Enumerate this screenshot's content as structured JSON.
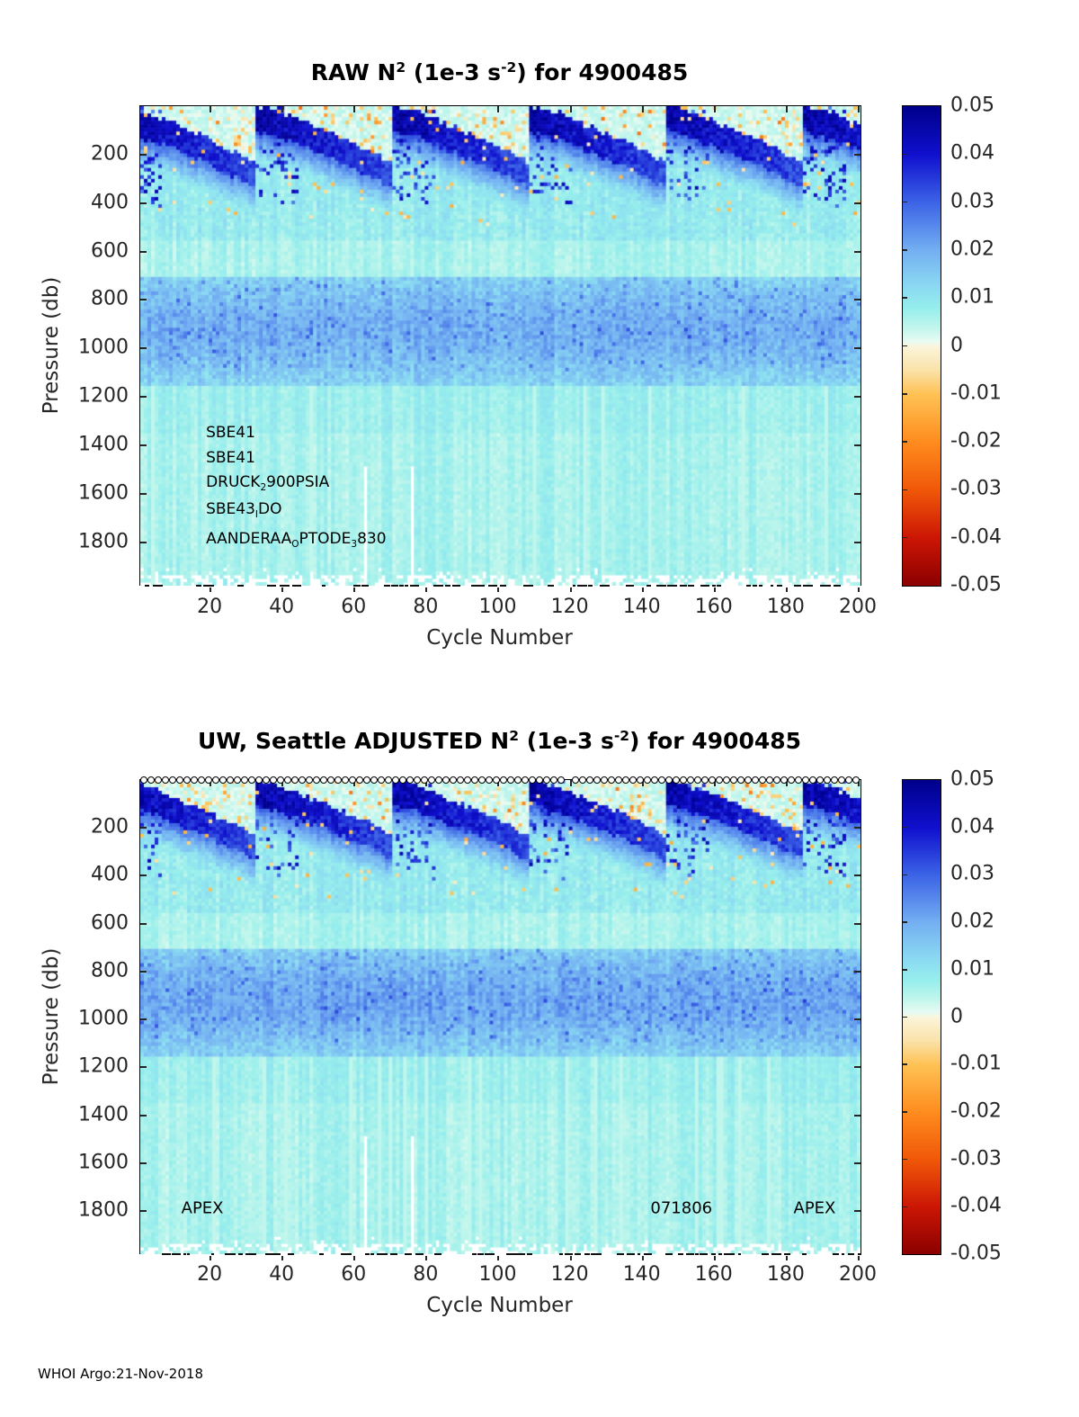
{
  "footer": "WHOI Argo:21-Nov-2018",
  "colormap_stops": [
    {
      "v": 0.05,
      "c": "#00008C"
    },
    {
      "v": 0.04,
      "c": "#1010CE"
    },
    {
      "v": 0.03,
      "c": "#3C64E6"
    },
    {
      "v": 0.02,
      "c": "#74B0F2"
    },
    {
      "v": 0.012,
      "c": "#8CDCF2"
    },
    {
      "v": 0.008,
      "c": "#96EEEC"
    },
    {
      "v": 0.004,
      "c": "#C0F6EC"
    },
    {
      "v": 0.001,
      "c": "#E8FBF2"
    },
    {
      "v": 0.0,
      "c": "#FBF5DC"
    },
    {
      "v": -0.005,
      "c": "#FAE2A8"
    },
    {
      "v": -0.01,
      "c": "#FFC254"
    },
    {
      "v": -0.02,
      "c": "#FF8C1E"
    },
    {
      "v": -0.03,
      "c": "#F05808"
    },
    {
      "v": -0.04,
      "c": "#CC1605"
    },
    {
      "v": -0.05,
      "c": "#8B0000"
    }
  ],
  "colorbar": {
    "vmin": -0.05,
    "vmax": 0.05,
    "tick_values": [
      0.05,
      0.04,
      0.03,
      0.02,
      0.01,
      0,
      -0.01,
      -0.02,
      -0.03,
      -0.04,
      -0.05
    ],
    "tick_labels": [
      "0.05",
      "0.04",
      "0.03",
      "0.02",
      "0.01",
      "0",
      "-0.01",
      "-0.02",
      "-0.03",
      "-0.04",
      "-0.05"
    ]
  },
  "axes": {
    "xlabel": "Cycle Number",
    "ylabel": "Pressure (db)",
    "x_ticks": [
      20,
      40,
      60,
      80,
      100,
      120,
      140,
      160,
      180,
      200
    ],
    "y_ticks": [
      200,
      400,
      600,
      800,
      1000,
      1200,
      1400,
      1600,
      1800
    ],
    "x_range": [
      0.5,
      200.5
    ],
    "y_range": [
      0,
      1980
    ]
  },
  "chart_data": [
    {
      "type": "heatmap",
      "panel": "raw",
      "title": "RAW N^2 (1e-3 s^-2) for 4900485",
      "title_segments": [
        {
          "t": "RAW N"
        },
        {
          "t": "2",
          "sup": true
        },
        {
          "t": " (1e-3 s"
        },
        {
          "t": "-2",
          "sup": true
        },
        {
          "t": ") for 4900485"
        }
      ],
      "xlabel": "Cycle Number",
      "ylabel": "Pressure (db)",
      "seed": 20181121,
      "band_boost": 1.0,
      "mixed_layer_period_cycles": 38,
      "depth_bands": [
        {
          "pressure_db": [
            0,
            60
          ],
          "n2_1e3": [
            -0.005,
            0.01
          ],
          "description": "surface: near-zero cream patches between mixed-layer events, tan/orange specks"
        },
        {
          "pressure_db": [
            20,
            260
          ],
          "n2_1e3": [
            0.04,
            0.05
          ],
          "description": "seasonal pycnocline: dark navy band deepening from ~20 db to ~250 db each ~38-cycle period"
        },
        {
          "pressure_db": [
            260,
            560
          ],
          "n2_1e3": [
            0.008,
            0.03
          ],
          "description": "scattered medium-blue speckles over pale cyan"
        },
        {
          "pressure_db": [
            560,
            720
          ],
          "n2_1e3": [
            0.004,
            0.01
          ],
          "description": "palest cyan stratification minimum"
        },
        {
          "pressure_db": [
            720,
            1100
          ],
          "n2_1e3": [
            0.012,
            0.025
          ],
          "description": "permanent pycnocline: light-to-medium blue band, maximum near 900 db"
        },
        {
          "pressure_db": [
            1100,
            1980
          ],
          "n2_1e3": [
            0.004,
            0.01
          ],
          "description": "deep: uniform pale cyan with faint vertical striping; bottom row partly missing"
        }
      ],
      "missing_deep_cycles": [
        63,
        76
      ],
      "missing_deep_below_db": 1480,
      "annotations": [
        {
          "segments": [
            {
              "t": "SBE41"
            }
          ],
          "cycle": 19,
          "pressure": 1352,
          "align": "left"
        },
        {
          "segments": [
            {
              "t": "SBE41"
            }
          ],
          "cycle": 19,
          "pressure": 1456,
          "align": "left"
        },
        {
          "segments": [
            {
              "t": "DRUCK"
            },
            {
              "t": "2",
              "sub": true
            },
            {
              "t": "900PSIA"
            }
          ],
          "cycle": 19,
          "pressure": 1556,
          "align": "left"
        },
        {
          "segments": [
            {
              "t": "SBE43"
            },
            {
              "t": "I",
              "sub": true
            },
            {
              "t": "DO"
            }
          ],
          "cycle": 19,
          "pressure": 1668,
          "align": "left"
        },
        {
          "segments": [
            {
              "t": "AANDERAA"
            },
            {
              "t": "O",
              "sub": true
            },
            {
              "t": "PTODE"
            },
            {
              "t": "3",
              "sub": true
            },
            {
              "t": "830"
            }
          ],
          "cycle": 19,
          "pressure": 1790,
          "align": "left"
        }
      ]
    },
    {
      "type": "heatmap",
      "panel": "adjusted",
      "title": "UW, Seattle  ADJUSTED N^2 (1e-3 s^-2) for 4900485",
      "title_segments": [
        {
          "t": "UW, Seattle  ADJUSTED N"
        },
        {
          "t": "2",
          "sup": true
        },
        {
          "t": " (1e-3 s"
        },
        {
          "t": "-2",
          "sup": true
        },
        {
          "t": ") for 4900485"
        }
      ],
      "xlabel": "Cycle Number",
      "ylabel": "Pressure (db)",
      "seed": 7061806,
      "band_boost": 1.12,
      "mixed_layer_period_cycles": 38,
      "depth_bands": [
        {
          "pressure_db": [
            0,
            60
          ],
          "n2_1e3": [
            -0.005,
            0.01
          ],
          "description": "surface: near-zero cream patches between mixed-layer events, tan/orange specks"
        },
        {
          "pressure_db": [
            20,
            260
          ],
          "n2_1e3": [
            0.04,
            0.05
          ],
          "description": "seasonal pycnocline: dark navy band deepening from ~20 db to ~250 db each ~38-cycle period"
        },
        {
          "pressure_db": [
            260,
            560
          ],
          "n2_1e3": [
            0.008,
            0.03
          ],
          "description": "scattered medium-blue speckles over pale cyan"
        },
        {
          "pressure_db": [
            560,
            720
          ],
          "n2_1e3": [
            0.004,
            0.01
          ],
          "description": "palest cyan stratification minimum"
        },
        {
          "pressure_db": [
            720,
            1100
          ],
          "n2_1e3": [
            0.014,
            0.028
          ],
          "description": "permanent pycnocline: slightly stronger light/medium blue band, maximum near 900 db"
        },
        {
          "pressure_db": [
            1100,
            1980
          ],
          "n2_1e3": [
            0.004,
            0.01
          ],
          "description": "deep: uniform pale cyan with faint vertical striping; bottom row partly missing"
        }
      ],
      "missing_deep_cycles": [
        63,
        76
      ],
      "missing_deep_below_db": 1480,
      "marker_row": {
        "gap_cycles": [
          120
        ]
      },
      "annotations": [
        {
          "segments": [
            {
              "t": "APEX"
            }
          ],
          "cycle": 18,
          "pressure": 1792,
          "align": "center"
        },
        {
          "segments": [
            {
              "t": "071806"
            }
          ],
          "cycle": 151,
          "pressure": 1792,
          "align": "center"
        },
        {
          "segments": [
            {
              "t": "APEX"
            }
          ],
          "cycle": 188,
          "pressure": 1792,
          "align": "center"
        }
      ]
    }
  ]
}
